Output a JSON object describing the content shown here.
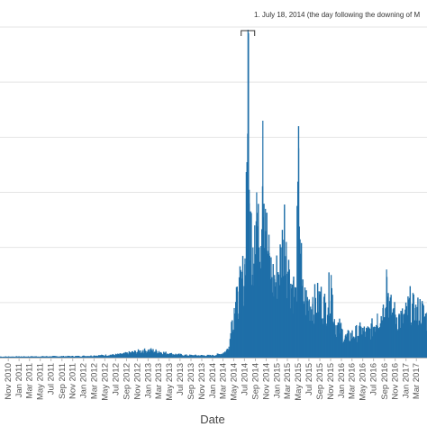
{
  "chart_data": {
    "type": "bar",
    "xlabel": "Date",
    "ylabel": "",
    "title": "",
    "grid": true,
    "bar_color": "#1f6fa8",
    "x_range": [
      "2010-09-15",
      "2017-04-30"
    ],
    "y_range": [
      0,
      6000
    ],
    "y_gridlines": [
      1000,
      2000,
      3000,
      4000,
      5000,
      6000
    ],
    "x_ticks": [
      "Nov 2010",
      "Jan 2011",
      "Mar 2011",
      "May 2011",
      "Jul 2011",
      "Sep 2011",
      "Nov 2011",
      "Jan 2012",
      "Mar 2012",
      "May 2012",
      "Jul 2012",
      "Sep 2012",
      "Nov 2012",
      "Jan 2013",
      "Mar 2013",
      "May 2013",
      "Jul 2013",
      "Sep 2013",
      "Nov 2013",
      "Jan 2014",
      "Mar 2014",
      "May 2014",
      "Jul 2014",
      "Sep 2014",
      "Nov 2014",
      "Jan 2015",
      "Mar 2015",
      "May 2015",
      "Jul 2015",
      "Sep 2015",
      "Nov 2015",
      "Jan 2016",
      "Mar 2016",
      "May 2016",
      "Jul 2016",
      "Sep 2016",
      "Nov 2016",
      "Jan 2017",
      "Mar 2017"
    ],
    "x_tick_dates": [
      "2010-11-01",
      "2011-01-01",
      "2011-03-01",
      "2011-05-01",
      "2011-07-01",
      "2011-09-01",
      "2011-11-01",
      "2012-01-01",
      "2012-03-01",
      "2012-05-01",
      "2012-07-01",
      "2012-09-01",
      "2012-11-01",
      "2013-01-01",
      "2013-03-01",
      "2013-05-01",
      "2013-07-01",
      "2013-09-01",
      "2013-11-01",
      "2014-01-01",
      "2014-03-01",
      "2014-05-01",
      "2014-07-01",
      "2014-09-01",
      "2014-11-01",
      "2015-01-01",
      "2015-03-01",
      "2015-05-01",
      "2015-07-01",
      "2015-09-01",
      "2015-11-01",
      "2016-01-01",
      "2016-03-01",
      "2016-05-01",
      "2016-07-01",
      "2016-09-01",
      "2016-11-01",
      "2017-01-01",
      "2017-03-01"
    ],
    "points": [
      {
        "date": "2010-09-15",
        "value": 20
      },
      {
        "date": "2011-06-01",
        "value": 25
      },
      {
        "date": "2011-12-01",
        "value": 30
      },
      {
        "date": "2012-03-01",
        "value": 40
      },
      {
        "date": "2012-06-01",
        "value": 55
      },
      {
        "date": "2012-08-01",
        "value": 70
      },
      {
        "date": "2012-10-01",
        "value": 110
      },
      {
        "date": "2012-12-01",
        "value": 140
      },
      {
        "date": "2013-01-15",
        "value": 150
      },
      {
        "date": "2013-03-01",
        "value": 120
      },
      {
        "date": "2013-05-01",
        "value": 80
      },
      {
        "date": "2013-08-01",
        "value": 50
      },
      {
        "date": "2013-11-01",
        "value": 45
      },
      {
        "date": "2014-01-01",
        "value": 45
      },
      {
        "date": "2014-03-01",
        "value": 90
      },
      {
        "date": "2014-04-01",
        "value": 200
      },
      {
        "date": "2014-04-15",
        "value": 650
      },
      {
        "date": "2014-05-01",
        "value": 900
      },
      {
        "date": "2014-05-20",
        "value": 1200
      },
      {
        "date": "2014-06-10",
        "value": 1500
      },
      {
        "date": "2014-07-01",
        "value": 1800
      },
      {
        "date": "2014-07-18",
        "value": 5950
      },
      {
        "date": "2014-07-25",
        "value": 2800
      },
      {
        "date": "2014-08-05",
        "value": 2600
      },
      {
        "date": "2014-08-15",
        "value": 2000
      },
      {
        "date": "2014-08-25",
        "value": 2400
      },
      {
        "date": "2014-09-05",
        "value": 3000
      },
      {
        "date": "2014-09-20",
        "value": 2000
      },
      {
        "date": "2014-10-10",
        "value": 4300
      },
      {
        "date": "2014-10-25",
        "value": 2700
      },
      {
        "date": "2014-11-15",
        "value": 1900
      },
      {
        "date": "2014-12-15",
        "value": 1500
      },
      {
        "date": "2015-01-20",
        "value": 2000
      },
      {
        "date": "2015-02-10",
        "value": 2700
      },
      {
        "date": "2015-02-20",
        "value": 2100
      },
      {
        "date": "2015-03-10",
        "value": 1600
      },
      {
        "date": "2015-04-01",
        "value": 1400
      },
      {
        "date": "2015-04-15",
        "value": 1200
      },
      {
        "date": "2015-05-01",
        "value": 3800
      },
      {
        "date": "2015-05-20",
        "value": 1300
      },
      {
        "date": "2015-06-20",
        "value": 1100
      },
      {
        "date": "2015-07-20",
        "value": 1100
      },
      {
        "date": "2015-09-01",
        "value": 1200
      },
      {
        "date": "2015-10-01",
        "value": 1000
      },
      {
        "date": "2015-11-01",
        "value": 1500
      },
      {
        "date": "2015-11-20",
        "value": 700
      },
      {
        "date": "2015-12-20",
        "value": 600
      },
      {
        "date": "2016-01-20",
        "value": 400
      },
      {
        "date": "2016-02-20",
        "value": 450
      },
      {
        "date": "2016-03-20",
        "value": 500
      },
      {
        "date": "2016-04-20",
        "value": 550
      },
      {
        "date": "2016-05-20",
        "value": 500
      },
      {
        "date": "2016-06-20",
        "value": 600
      },
      {
        "date": "2016-07-20",
        "value": 800
      },
      {
        "date": "2016-08-20",
        "value": 900
      },
      {
        "date": "2016-09-10",
        "value": 1600
      },
      {
        "date": "2016-09-30",
        "value": 1000
      },
      {
        "date": "2016-10-20",
        "value": 900
      },
      {
        "date": "2016-11-20",
        "value": 800
      },
      {
        "date": "2016-12-20",
        "value": 800
      },
      {
        "date": "2017-01-20",
        "value": 1100
      },
      {
        "date": "2017-02-20",
        "value": 900
      },
      {
        "date": "2017-03-20",
        "value": 1000
      },
      {
        "date": "2017-04-20",
        "value": 800
      }
    ],
    "annotation": {
      "text": "1. July 18, 2014 (the day following the downing of M",
      "date": "2014-07-18"
    }
  }
}
